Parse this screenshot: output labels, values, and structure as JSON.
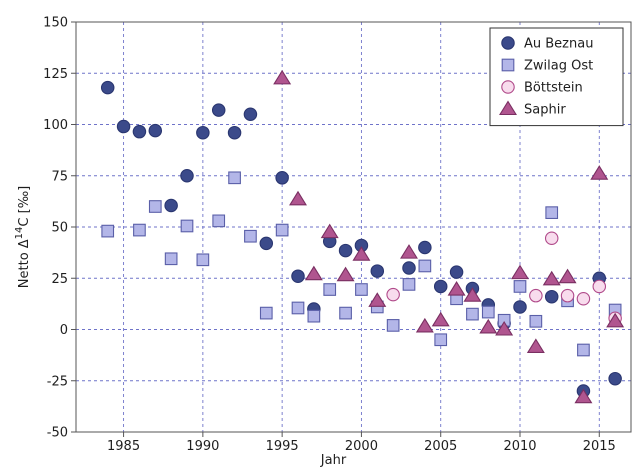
{
  "chart_data": {
    "type": "scatter",
    "title": "",
    "xlabel": "Jahr",
    "ylabel": "Netto Δ14C [‰]",
    "ylabel_parts": {
      "prefix": "Netto Δ",
      "superscript": "14",
      "suffix": "C [‰]"
    },
    "xlim": [
      1982,
      2017
    ],
    "ylim": [
      -50,
      150
    ],
    "xticks": [
      1985,
      1990,
      1995,
      2000,
      2005,
      2010,
      2015
    ],
    "yticks": [
      -50,
      -25,
      0,
      25,
      50,
      75,
      100,
      125,
      150
    ],
    "grid": true,
    "legend_position": "top-right",
    "series": [
      {
        "name": "Au Beznau",
        "marker": "circle",
        "color": "#3b4a8a",
        "stroke": "#2a3670",
        "points": [
          [
            1984,
            118
          ],
          [
            1985,
            99
          ],
          [
            1986,
            96.5
          ],
          [
            1987,
            97
          ],
          [
            1988,
            60.5
          ],
          [
            1989,
            75
          ],
          [
            1990,
            96
          ],
          [
            1991,
            107
          ],
          [
            1992,
            96
          ],
          [
            1993,
            105
          ],
          [
            1994,
            42
          ],
          [
            1995,
            74
          ],
          [
            1996,
            26
          ],
          [
            1997,
            10
          ],
          [
            1998,
            43
          ],
          [
            1999,
            38.5
          ],
          [
            2000,
            41
          ],
          [
            2001,
            28.5
          ],
          [
            2003,
            30
          ],
          [
            2004,
            40
          ],
          [
            2005,
            21
          ],
          [
            2006,
            28
          ],
          [
            2007,
            20
          ],
          [
            2008,
            12
          ],
          [
            2009,
            3
          ],
          [
            2010,
            11
          ],
          [
            2012,
            16
          ],
          [
            2014,
            -30
          ],
          [
            2015,
            25
          ],
          [
            2016,
            -24
          ]
        ]
      },
      {
        "name": "Zwilag Ost",
        "marker": "square",
        "color": "#b3b6e8",
        "stroke": "#5a5fa8",
        "points": [
          [
            1984,
            48
          ],
          [
            1986,
            48.5
          ],
          [
            1987,
            60
          ],
          [
            1988,
            34.5
          ],
          [
            1989,
            50.5
          ],
          [
            1990,
            34
          ],
          [
            1991,
            53
          ],
          [
            1992,
            74
          ],
          [
            1993,
            45.5
          ],
          [
            1994,
            8
          ],
          [
            1995,
            48.5
          ],
          [
            1996,
            10.5
          ],
          [
            1997,
            6.5
          ],
          [
            1998,
            19.5
          ],
          [
            1999,
            8
          ],
          [
            2000,
            19.5
          ],
          [
            2001,
            11
          ],
          [
            2002,
            2
          ],
          [
            2003,
            22
          ],
          [
            2004,
            31
          ],
          [
            2005,
            -5
          ],
          [
            2006,
            15
          ],
          [
            2007,
            7.5
          ],
          [
            2008,
            8.5
          ],
          [
            2009,
            4.5
          ],
          [
            2010,
            21
          ],
          [
            2011,
            4
          ],
          [
            2012,
            57
          ],
          [
            2013,
            14
          ],
          [
            2014,
            -10
          ],
          [
            2016,
            9.5
          ]
        ]
      },
      {
        "name": "Böttstein",
        "marker": "circle",
        "color": "#f8dced",
        "stroke": "#b04a8a",
        "points": [
          [
            2002,
            17
          ],
          [
            2011,
            16.5
          ],
          [
            2012,
            44.5
          ],
          [
            2013,
            16.5
          ],
          [
            2014,
            15
          ],
          [
            2015,
            21
          ],
          [
            2016,
            5.5
          ]
        ]
      },
      {
        "name": "Saphir",
        "marker": "triangle",
        "color": "#b0558f",
        "stroke": "#7a2f62",
        "points": [
          [
            1995,
            122.5
          ],
          [
            1996,
            63.5
          ],
          [
            1997,
            27
          ],
          [
            1998,
            47.5
          ],
          [
            1999,
            26.5
          ],
          [
            2000,
            36.5
          ],
          [
            2001,
            14
          ],
          [
            2003,
            37.5
          ],
          [
            2004,
            1.5
          ],
          [
            2005,
            4.5
          ],
          [
            2006,
            19.5
          ],
          [
            2007,
            16.5
          ],
          [
            2008,
            1
          ],
          [
            2009,
            0
          ],
          [
            2010,
            27.5
          ],
          [
            2011,
            -8.5
          ],
          [
            2012,
            24.5
          ],
          [
            2013,
            25.5
          ],
          [
            2014,
            -33
          ],
          [
            2015,
            76
          ],
          [
            2016,
            4
          ]
        ]
      }
    ]
  }
}
